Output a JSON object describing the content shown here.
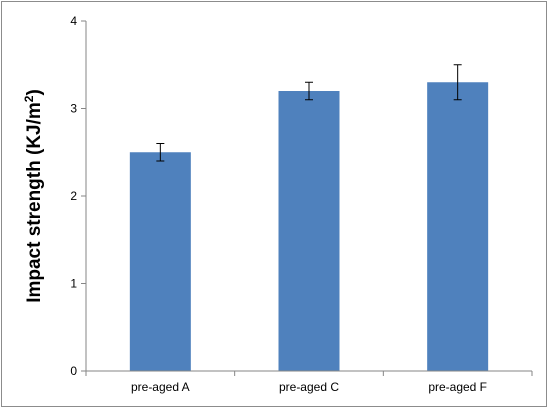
{
  "chart_data": {
    "type": "bar",
    "title": "",
    "xlabel": "",
    "ylabel": "Impact strength (KJ/m",
    "ylabel_superscript": "2",
    "ylabel_suffix": ")",
    "categories": [
      "pre-aged A",
      "pre-aged C",
      "pre-aged F"
    ],
    "values": [
      2.5,
      3.2,
      3.3
    ],
    "error_low": [
      0.1,
      0.1,
      0.2
    ],
    "error_high": [
      0.1,
      0.1,
      0.2
    ],
    "ylim": [
      0,
      4
    ],
    "yticks": [
      "0",
      "1",
      "2",
      "3",
      "4"
    ],
    "ytick_values": [
      0,
      1,
      2,
      3,
      4
    ],
    "grid": false,
    "legend": "none",
    "bar_color": "#4f81bd",
    "axis_color": "#868686"
  }
}
